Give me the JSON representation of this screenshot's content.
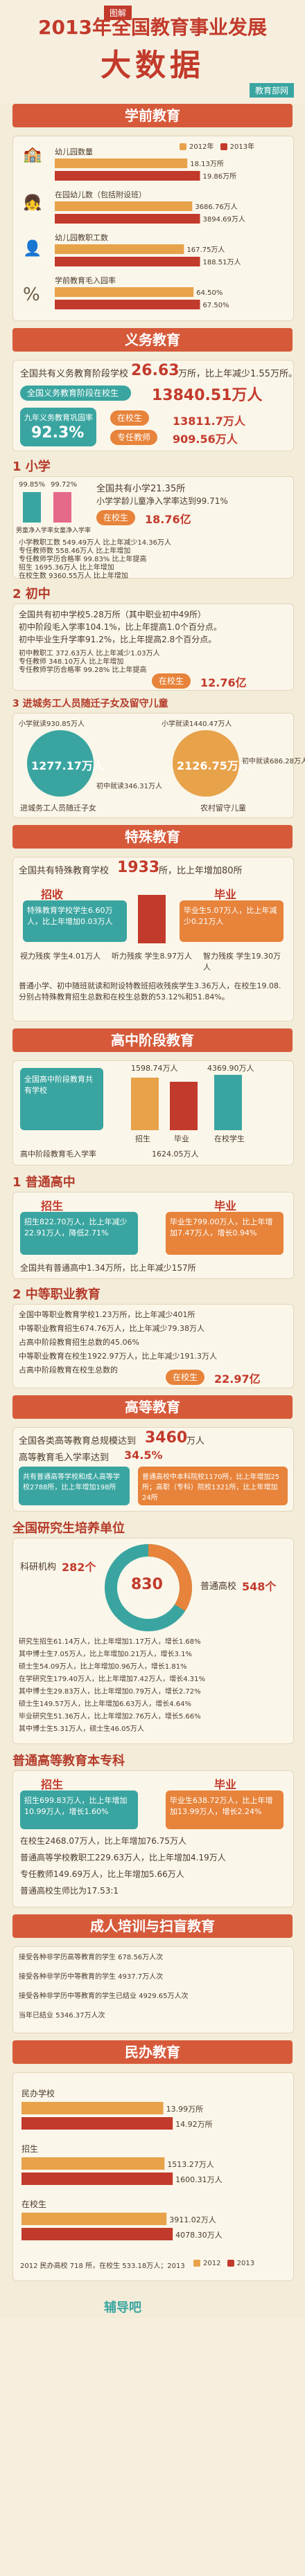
{
  "header": {
    "kicker": "图解",
    "title": "2013年全国教育事业发展",
    "main": "大数据",
    "source": "教育部网"
  },
  "sections": {
    "preschool": "学前教育",
    "compulsory": "义务教育",
    "special": "特殊教育",
    "high_school": "高中阶段教育",
    "higher": "高等教育",
    "adult": "成人培训与扫盲教育",
    "private": "民办教育"
  },
  "preschool": {
    "legend_2012": "2012年",
    "legend_2013": "2013年",
    "rows": [
      {
        "label": "幼儿园数量",
        "v2012": "18.13万所",
        "v2013": "19.86万所"
      },
      {
        "label": "在园幼儿数（包括附设班）",
        "v2012": "3686.76万人",
        "v2013": "3894.69万人"
      },
      {
        "label": "幼儿园教职工数",
        "v2012": "167.75万人",
        "v2013": "188.51万人"
      },
      {
        "label": "学前教育毛入园率",
        "v2012": "64.50%",
        "v2013": "67.50%"
      }
    ]
  },
  "compulsory": {
    "schools_text": "全国共有义务教育阶段学校",
    "schools_val": "26.63",
    "schools_unit": "万所，比上年减少1.55万所。",
    "students_text": "全国义务教育阶段在校生",
    "students_val": "13840.51万人",
    "gross_label": "九年义务教育巩固率",
    "gross_val": "92.3%",
    "teachers_label": "专任教师",
    "teachers_val": "909.56万人",
    "buxiaoshu_label": "在校生",
    "buxiaoshu_val": "13811.7万人"
  },
  "primary": {
    "title": "1 小学",
    "schools": "全国共有小学21.35所",
    "enroll_rate": "小学学龄儿童净入学率达到99.71%",
    "teachers": "专任教师",
    "students_label": "在校生",
    "students_val": "18.76亿",
    "ratio_2012": "99.85%",
    "ratio_2013": "99.72%",
    "cap_boys": "男童净入学率",
    "cap_girls": "女童净入学率",
    "rows": [
      {
        "label": "小学教职工数",
        "val": "549.49万人",
        "delta": "比上年减少14.36万人"
      },
      {
        "label": "专任教师数",
        "val": "558.46万人",
        "delta": "比上年增加"
      },
      {
        "label": "专任教师学历合格率",
        "val": "99.83%",
        "delta": "比上年提高"
      },
      {
        "label": "招生",
        "val": "1695.36万人",
        "delta": "比上年增加"
      },
      {
        "label": "在校生数",
        "val": "9360.55万人",
        "delta": "比上年增加"
      }
    ]
  },
  "junior": {
    "title": "2 初中",
    "schools": "全国共有初中学校5.28万所（其中职业初中49所）",
    "gross": "初中阶段毛入学率104.1%，比上年提高1.0个百分点。",
    "promote": "初中毕业生升学率91.2%，比上年提高2.8个百分点。",
    "rows": [
      {
        "label": "初中教职工",
        "val": "372.63万人",
        "delta": "比上年减少1.03万人"
      },
      {
        "label": "专任教师",
        "val": "348.10万人",
        "delta": "比上年增加"
      },
      {
        "label": "专任教师学历合格率",
        "val": "99.28%",
        "delta": "比上年提高"
      }
    ],
    "students_label": "在校生",
    "students_val": "12.76亿"
  },
  "migrant": {
    "title": "3 进城务工人员随迁子女及留守儿童",
    "primary_label": "小学就读930.85万人",
    "junior_label": "初中就读346.31万人",
    "total_1": "1277.17万人",
    "caption_1": "进城务工人员随迁子女",
    "primary_2": "小学就读1440.47万人",
    "junior_2": "初中就读686.28万人",
    "total_2": "2126.75万人",
    "caption_2": "农村留守儿童"
  },
  "special": {
    "schools_text": "全国共有特殊教育学校",
    "schools_val": "1933",
    "schools_unit": "所，比上年增加80所",
    "enroll_title": "招收",
    "enroll_text": "特殊教育学校学生6.60万人，比上年增加0.03万人",
    "grad_title": "毕业",
    "grad_text": "毕业生5.07万人，比上年减少0.21万人",
    "cats": [
      {
        "label": "视力残疾",
        "val": "学生4.01万人"
      },
      {
        "label": "听力残疾",
        "val": "学生8.97万人"
      },
      {
        "label": "智力残疾",
        "val": "学生19.30万人"
      }
    ],
    "note": "普通小学、初中随班就读和附设特教班招收残疾学生3.36万人，在校生19.08.分别占特殊教育招生总数和在校生总数的53.12%和51.84%。"
  },
  "high": {
    "total_text": "全国共有高中阶段教育学校",
    "schools_val": "1598.74万人",
    "gross_rate": "高中阶段教育毛入学率",
    "students_text": "全国高中阶段教育共有学校",
    "col_a": "招生",
    "col_b": "毕业",
    "col_c": "在校学生",
    "in_school": "4369.90万人",
    "grad_val": "1624.05万人",
    "senior_title": "1 普通高中",
    "senior_enroll_title": "招生",
    "senior_enroll": "招生822.70万人，比上年减少22.91万人，降低2.71%",
    "senior_grad_title": "毕业",
    "senior_grad": "毕业生799.00万人，比上年增加7.47万人，增长0.94%",
    "senior_schools": "全国共有普通高中1.34万所，比上年减少157所",
    "voc_title": "2 中等职业教育",
    "voc_schools": "全国中等职业教育学校1.23万所，比上年减少401所",
    "voc_enroll": "中等职业教育招生674.76万人，比上年减少79.38万人",
    "voc_share": "占高中阶段教育招生总数的45.06%",
    "voc_students": "中等职业教育在校生1922.97万人，比上年减少191.3万人",
    "voc_share2": "占高中阶段教育在校生总数的",
    "voc_students_label": "在校生",
    "voc_students_val": "22.97亿"
  },
  "higher": {
    "total_text": "全国各类高等教育总规模达到",
    "total_val": "3460",
    "total_unit": "万人",
    "gross_text": "高等教育毛入学率达到",
    "gross_val": "34.5%",
    "inst_text": "共有普通高等学校和成人高等学校2788所，比上年增加198所",
    "regular_text": "普通高校中本科院校1170所，比上年增加25所；高职（专科）院校1321所，比上年增加24所",
    "grad_units_title": "全国研究生培养单位",
    "grad_units_val": "830",
    "research_label": "科研机构",
    "research_val": "282个",
    "univ_label": "普通高校",
    "univ_val": "548个",
    "grad_rows": [
      "研究生招生61.14万人，比上年增加1.17万人，增长1.68%",
      "其中博士生7.05万人，比上年增加0.21万人，增长3.1%",
      "硕士生54.09万人，比上年增加0.96万人，增长1.81%",
      "在学研究生179.40万人，比上年增加7.42万人，增长4.31%",
      "其中博士生29.83万人，比上年增加0.79万人，增长2.72%",
      "硕士生149.57万人，比上年增加6.63万人，增长4.64%",
      "毕业研究生51.36万人，比上年增加2.76万人，增长5.66%",
      "其中博士生5.31万人，硕士生46.05万人"
    ],
    "ug_title": "普通高等教育本专科",
    "ug_enroll_title": "招生",
    "ug_enroll": "招生699.83万人，比上年增加10.99万人，增长1.60%",
    "ug_grad_title": "毕业",
    "ug_grad": "毕业生638.72万人，比上年增加13.99万人，增长2.24%",
    "ug_students": "在校生2468.07万人，比上年增加76.75万人",
    "faculty_text": "普通高等学校教职工229.63万人，比上年增加4.19万人",
    "faculty_val": "229.63",
    "teachers_text": "专任教师149.69万人，比上年增加5.66万人",
    "teachers_val": "149.69",
    "ratio_text": "普通高校生师比为17.53:1",
    "ratio_val": "17.53:1"
  },
  "adult": {
    "rows": [
      {
        "label": "接受各种非学历高等教育的学生",
        "val": "678.56万人次"
      },
      {
        "label": "接受各种非学历中等教育的学生",
        "val": "4937.7万人次"
      },
      {
        "label": "接受各种非学历中等教育的学生已结业",
        "val": "4929.65万人次"
      },
      {
        "label": "当年已结业",
        "val": "5346.37万人次"
      }
    ]
  },
  "private": {
    "legend_2012": "2012",
    "legend_2013": "2013",
    "rows": [
      {
        "label": "民办学校",
        "v2012": "13.99万所",
        "v2013": "14.92万所"
      },
      {
        "label": "招生",
        "v2012": "1513.27万人",
        "v2013": "1600.31万人"
      },
      {
        "label": "在校生",
        "v2012": "3911.02万人",
        "v2013": "4078.30万人"
      }
    ],
    "note": "2012 民办高校 718 所，在校生 533.18万人；2013"
  },
  "watermark": "辅导吧",
  "chart_data": [
    {
      "type": "bar",
      "title": "学前教育",
      "categories": [
        "幼儿园数量",
        "在园幼儿数",
        "幼儿园教职工数",
        "学前教育毛入园率"
      ],
      "series": [
        {
          "name": "2012年",
          "values": [
            18.13,
            3686.76,
            167.75,
            64.5
          ]
        },
        {
          "name": "2013年",
          "values": [
            19.86,
            3894.69,
            188.51,
            67.5
          ]
        }
      ]
    },
    {
      "type": "bar",
      "title": "民办教育",
      "categories": [
        "民办学校",
        "招生",
        "在校生"
      ],
      "series": [
        {
          "name": "2012",
          "values": [
            13.99,
            1513.27,
            3911.02
          ]
        },
        {
          "name": "2013",
          "values": [
            14.92,
            1600.31,
            4078.3
          ]
        }
      ]
    }
  ],
  "colors": {
    "accent": "#c23a2b",
    "bar_2012": "#e7a24a",
    "bar_2013": "#c23a2b",
    "teal": "#3aa5a0",
    "orange": "#e7833a",
    "pink": "#e56a8a",
    "panel": "#fbf6ea"
  }
}
